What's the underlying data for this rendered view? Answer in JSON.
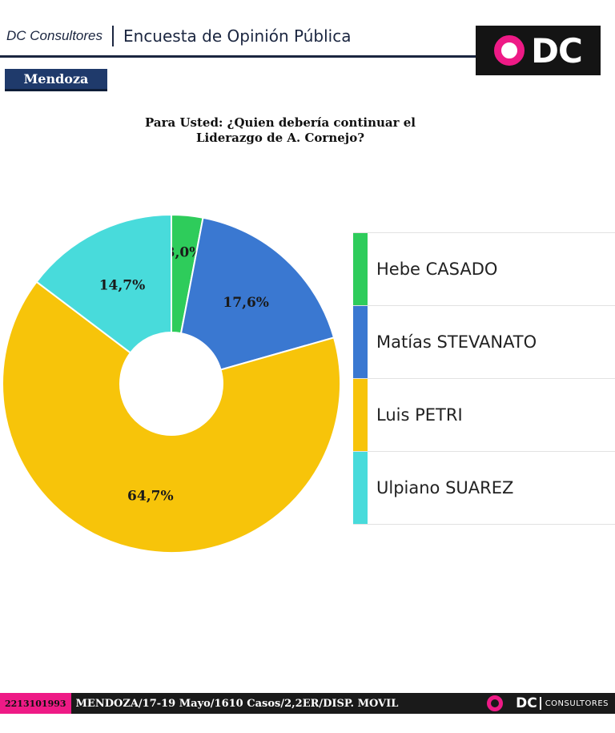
{
  "header": {
    "brand": "DC Consultores",
    "survey_title": "Encuesta de Opinión Pública",
    "logo_text": "DC"
  },
  "region": "Mendoza",
  "chart_data": {
    "type": "pie",
    "donut": true,
    "title": [
      "Para Usted: ¿Quien debería continuar el",
      "Liderazgo de A. Cornejo?"
    ],
    "legend_position": "right",
    "slices": [
      {
        "label": "Hebe CASADO",
        "value": 3.0,
        "display": "3,0%",
        "color": "#2ecc5b"
      },
      {
        "label": "Matías STEVANATO",
        "value": 17.6,
        "display": "17,6%",
        "color": "#3a78d1"
      },
      {
        "label": "Luis PETRI",
        "value": 64.7,
        "display": "64,7%",
        "color": "#f7c40a"
      },
      {
        "label": "Ulpiano SUAREZ",
        "value": 14.7,
        "display": "14,7%",
        "color": "#48dbdb"
      }
    ]
  },
  "footer": {
    "phone": "2213101993",
    "info": "MENDOZA/17-19 Mayo/1610 Casos/2,2ER/DISP. MOVIL",
    "logo_text": "DC",
    "logo_sub": "CONSULTORES"
  }
}
